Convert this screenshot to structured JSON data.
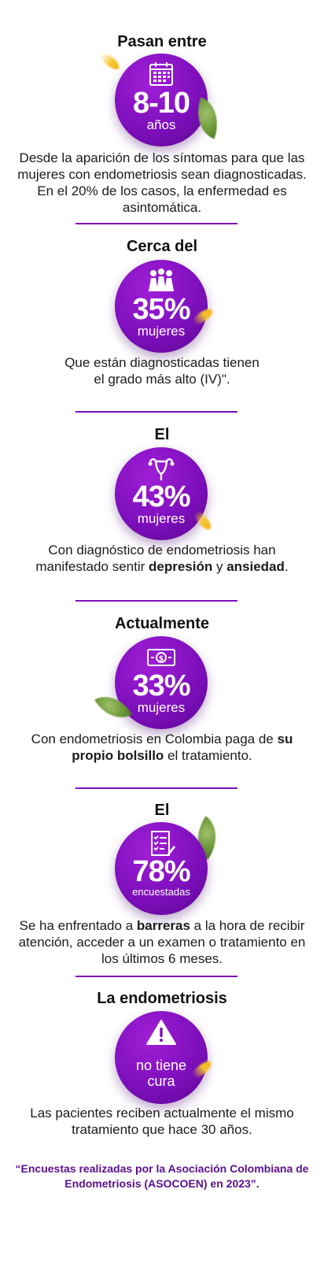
{
  "sections": [
    {
      "heading": "Pasan entre",
      "big": "8-10",
      "unit": "años",
      "icon": "calendar-icon",
      "desc": "Desde la aparición de los síntomas para que las mujeres con endometriosis sean diagnosticadas. En el 20% de los casos, la enfermedad es asintomática."
    },
    {
      "heading": "Cerca del",
      "big": "35%",
      "unit": "mujeres",
      "icon": "women-group-icon",
      "desc_line1": "Que están diagnosticadas tienen",
      "desc_line2": "el grado más alto (IV)\"."
    },
    {
      "heading": "El",
      "big": "43%",
      "unit": "mujeres",
      "icon": "uterus-icon",
      "desc_a": "Con diagnóstico de endometriosis han manifestado sentir ",
      "desc_b": "depresión",
      "desc_c": " y ",
      "desc_d": "ansiedad",
      "desc_e": "."
    },
    {
      "heading": "Actualmente",
      "big": "33%",
      "unit": "mujeres",
      "icon": "money-bill-icon",
      "desc_a": "Con endometriosis en Colombia paga de ",
      "desc_b": "su propio bolsillo",
      "desc_c": " el tratamiento."
    },
    {
      "heading": "El",
      "big": "78%",
      "unit": "encuestadas",
      "icon": "checklist-icon",
      "desc_a": "Se ha enfrentado a ",
      "desc_b": "barreras",
      "desc_c": " a la hora de recibir atención, acceder a un examen o tratamiento en los últimos 6 meses."
    },
    {
      "heading": "La endometriosis",
      "big_line1": "no tiene",
      "big_line2": "cura",
      "icon": "warning-icon",
      "desc": "Las pacientes reciben actualmente el mismo tratamiento que hace 30 años."
    }
  ],
  "footer": "“Encuestas realizadas por la Asociación Colombiana de Endometriosis (ASOCOEN) en 2023”.",
  "colors": {
    "accent": "#7e0fbd",
    "footer": "#5a0f8f",
    "leaf_green": "#6c9838",
    "leaf_yellow": "#f7c52c"
  }
}
